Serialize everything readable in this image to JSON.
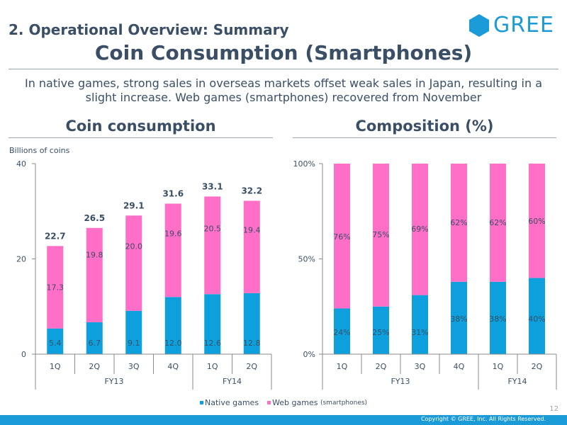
{
  "header": {
    "section_title": "2. Operational Overview: Summary",
    "page_title": "Coin Consumption (Smartphones)",
    "subtitle": "In native games, strong sales in overseas markets offset weak sales in Japan, resulting in a slight increase. Web games (smartphones) recovered from November"
  },
  "logo": {
    "text": "GREE",
    "color": "#1a9ad6"
  },
  "colors": {
    "native": "#0da0dc",
    "web": "#ff6ec7",
    "text": "#3a4f66",
    "axis": "#8a8a8a"
  },
  "left_chart": {
    "heading": "Coin consumption",
    "unit_label": "Billions of coins"
  },
  "right_chart": {
    "heading": "Composition (%)"
  },
  "legend": {
    "native": "Native games",
    "web": "Web games",
    "web_sub": "(smartphones)"
  },
  "chart_data": [
    {
      "type": "bar",
      "stacked": true,
      "title": "Coin consumption",
      "ylabel": "Billions of coins",
      "categories": [
        "1Q",
        "2Q",
        "3Q",
        "4Q",
        "1Q",
        "2Q"
      ],
      "groups": [
        {
          "label": "FY13",
          "count": 4
        },
        {
          "label": "FY14",
          "count": 2
        }
      ],
      "series": [
        {
          "name": "Native games",
          "values": [
            5.4,
            6.7,
            9.1,
            12.0,
            12.6,
            12.8
          ]
        },
        {
          "name": "Web games (smartphones)",
          "values": [
            17.3,
            19.8,
            20.0,
            19.6,
            20.5,
            19.4
          ]
        }
      ],
      "totals": [
        22.7,
        26.5,
        29.1,
        31.6,
        33.1,
        32.2
      ],
      "labels": {
        "native": [
          "5.4",
          "6.7",
          "9.1",
          "12.0",
          "12.6",
          "12.8"
        ],
        "web": [
          "17.3",
          "19.8",
          "20.0",
          "19.6",
          "20.5",
          "19.4"
        ],
        "totals": [
          "22.7",
          "26.5",
          "29.1",
          "31.6",
          "33.1",
          "32.2"
        ]
      },
      "ylim": [
        0,
        40
      ],
      "yticks": [
        0,
        20,
        40
      ],
      "ytick_labels": [
        "0",
        "20",
        "40"
      ]
    },
    {
      "type": "bar",
      "stacked": true,
      "title": "Composition (%)",
      "categories": [
        "1Q",
        "2Q",
        "3Q",
        "4Q",
        "1Q",
        "2Q"
      ],
      "groups": [
        {
          "label": "FY13",
          "count": 4
        },
        {
          "label": "FY14",
          "count": 2
        }
      ],
      "series": [
        {
          "name": "Native games",
          "values": [
            24,
            25,
            31,
            38,
            38,
            40
          ]
        },
        {
          "name": "Web games (smartphones)",
          "values": [
            76,
            75,
            69,
            62,
            62,
            60
          ]
        }
      ],
      "labels": {
        "native": [
          "24%",
          "25%",
          "31%",
          "38%",
          "38%",
          "40%"
        ],
        "web": [
          "76%",
          "75%",
          "69%",
          "62%",
          "62%",
          "60%"
        ]
      },
      "ylim": [
        0,
        100
      ],
      "yticks": [
        0,
        50,
        100
      ],
      "ytick_labels": [
        "0%",
        "50%",
        "100%"
      ]
    }
  ],
  "footer": {
    "page_number": "12",
    "copyright": "Copyright © GREE, Inc. All Rights Reserved."
  }
}
